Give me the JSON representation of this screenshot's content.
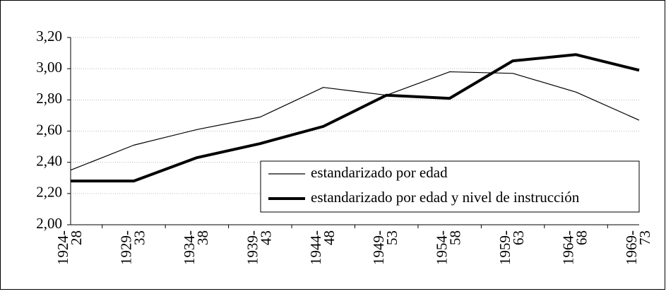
{
  "chart_data": {
    "type": "line",
    "categories": [
      "1924- 28",
      "1929- 33",
      "1934- 38",
      "1939- 43",
      "1944- 48",
      "1949- 53",
      "1954- 58",
      "1959- 63",
      "1964- 68",
      "1969- 73"
    ],
    "series": [
      {
        "name": "estandarizado por edad",
        "color": "#000000",
        "values": [
          2.35,
          2.51,
          2.61,
          2.69,
          2.88,
          2.83,
          2.98,
          2.97,
          2.85,
          2.67
        ]
      },
      {
        "name": "estandarizado por edad y nivel de instrucción",
        "color": "#000000",
        "values": [
          2.28,
          2.28,
          2.43,
          2.52,
          2.63,
          2.83,
          2.81,
          3.05,
          3.09,
          2.99
        ]
      }
    ],
    "ylim": [
      2.0,
      3.2
    ],
    "yticks": [
      {
        "value": 2.0,
        "label": "2,00"
      },
      {
        "value": 2.2,
        "label": "2,20"
      },
      {
        "value": 2.4,
        "label": "2,40"
      },
      {
        "value": 2.6,
        "label": "2,60"
      },
      {
        "value": 2.8,
        "label": "2,80"
      },
      {
        "value": 3.0,
        "label": "3,00"
      },
      {
        "value": 3.2,
        "label": "3,20"
      }
    ],
    "grid": true
  }
}
